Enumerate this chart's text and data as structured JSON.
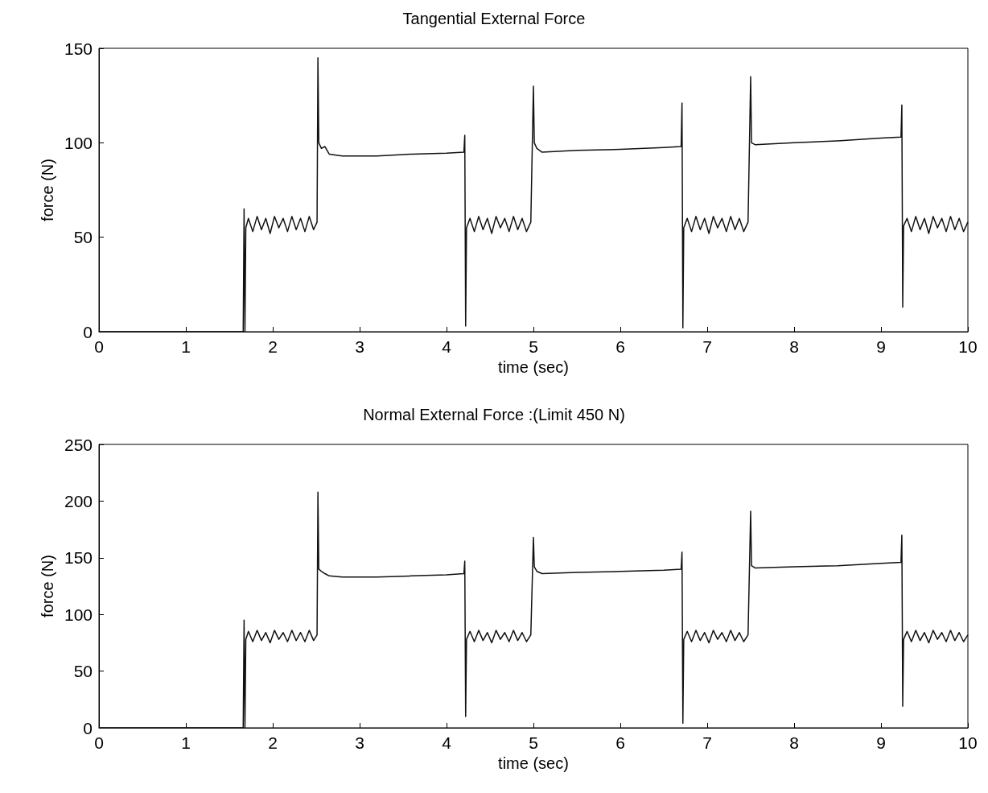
{
  "chart_data": [
    {
      "type": "line",
      "title": "Tangential External Force",
      "xlabel": "time (sec)",
      "ylabel": "force (N)",
      "xlim": [
        0,
        10
      ],
      "xticks": [
        0,
        1,
        2,
        3,
        4,
        5,
        6,
        7,
        8,
        9,
        10
      ],
      "ylim": [
        0,
        150
      ],
      "yticks": [
        0,
        50,
        100,
        150
      ],
      "grid": false,
      "marker": "none",
      "line_style": "solid",
      "series": [
        {
          "color": "#111111",
          "x": [
            0,
            1.66,
            1.67,
            1.68,
            1.69,
            1.72,
            1.77,
            1.82,
            1.87,
            1.92,
            1.97,
            2.02,
            2.07,
            2.12,
            2.17,
            2.22,
            2.27,
            2.32,
            2.37,
            2.42,
            2.47,
            2.51,
            2.52,
            2.53,
            2.56,
            2.6,
            2.65,
            2.8,
            3.2,
            3.6,
            4.0,
            4.2,
            4.21,
            4.22,
            4.23,
            4.27,
            4.32,
            4.37,
            4.42,
            4.47,
            4.52,
            4.57,
            4.62,
            4.67,
            4.72,
            4.77,
            4.82,
            4.87,
            4.92,
            4.97,
            5.0,
            5.01,
            5.04,
            5.1,
            5.5,
            6.0,
            6.5,
            6.7,
            6.71,
            6.72,
            6.73,
            6.77,
            6.82,
            6.87,
            6.92,
            6.97,
            7.02,
            7.07,
            7.12,
            7.17,
            7.22,
            7.27,
            7.32,
            7.37,
            7.42,
            7.47,
            7.5,
            7.51,
            7.55,
            8.0,
            8.5,
            9.0,
            9.23,
            9.24,
            9.25,
            9.26,
            9.3,
            9.35,
            9.4,
            9.45,
            9.5,
            9.55,
            9.6,
            9.65,
            9.7,
            9.75,
            9.8,
            9.85,
            9.9,
            9.95,
            10
          ],
          "values": [
            0,
            0,
            65,
            0,
            55,
            60,
            53,
            61,
            54,
            60,
            52,
            61,
            55,
            60,
            53,
            61,
            54,
            60,
            53,
            61,
            54,
            58,
            145,
            100,
            97,
            98,
            94,
            93,
            93,
            94,
            94.5,
            95,
            104,
            3,
            55,
            60,
            53,
            61,
            54,
            60,
            52,
            61,
            55,
            60,
            53,
            61,
            54,
            60,
            53,
            58,
            130,
            100,
            97,
            95,
            96,
            96.5,
            97.5,
            98,
            121,
            2,
            55,
            60,
            53,
            61,
            54,
            60,
            52,
            61,
            55,
            60,
            53,
            61,
            54,
            60,
            53,
            58,
            135,
            100,
            99,
            100,
            101,
            102.5,
            103,
            120,
            13,
            56,
            60,
            53,
            61,
            54,
            60,
            52,
            61,
            55,
            60,
            53,
            61,
            54,
            60,
            53,
            58
          ]
        }
      ]
    },
    {
      "type": "line",
      "title": "Normal External Force :(Limit 450 N)",
      "xlabel": "time (sec)",
      "ylabel": "force (N)",
      "xlim": [
        0,
        10
      ],
      "xticks": [
        0,
        1,
        2,
        3,
        4,
        5,
        6,
        7,
        8,
        9,
        10
      ],
      "ylim": [
        0,
        250
      ],
      "yticks": [
        0,
        50,
        100,
        150,
        200,
        250
      ],
      "grid": false,
      "marker": "none",
      "line_style": "solid",
      "series": [
        {
          "color": "#111111",
          "x": [
            0,
            1.66,
            1.67,
            1.68,
            1.69,
            1.72,
            1.77,
            1.82,
            1.87,
            1.92,
            1.97,
            2.02,
            2.07,
            2.12,
            2.17,
            2.22,
            2.27,
            2.32,
            2.37,
            2.42,
            2.47,
            2.51,
            2.52,
            2.53,
            2.56,
            2.6,
            2.65,
            2.8,
            3.2,
            3.6,
            4.0,
            4.2,
            4.21,
            4.22,
            4.23,
            4.27,
            4.32,
            4.37,
            4.42,
            4.47,
            4.52,
            4.57,
            4.62,
            4.67,
            4.72,
            4.77,
            4.82,
            4.87,
            4.92,
            4.97,
            5.0,
            5.01,
            5.04,
            5.1,
            5.5,
            6.0,
            6.5,
            6.7,
            6.71,
            6.72,
            6.73,
            6.77,
            6.82,
            6.87,
            6.92,
            6.97,
            7.02,
            7.07,
            7.12,
            7.17,
            7.22,
            7.27,
            7.32,
            7.37,
            7.42,
            7.47,
            7.5,
            7.51,
            7.55,
            8.0,
            8.5,
            9.0,
            9.23,
            9.24,
            9.25,
            9.26,
            9.3,
            9.35,
            9.4,
            9.45,
            9.5,
            9.55,
            9.6,
            9.65,
            9.7,
            9.75,
            9.8,
            9.85,
            9.9,
            9.95,
            10
          ],
          "values": [
            0,
            0,
            95,
            0,
            78,
            85,
            76,
            86,
            77,
            84,
            75,
            86,
            78,
            84,
            76,
            86,
            77,
            84,
            76,
            86,
            77,
            82,
            208,
            140,
            138,
            136,
            134,
            133,
            133,
            134,
            135,
            136,
            147,
            10,
            78,
            85,
            76,
            86,
            77,
            84,
            75,
            86,
            78,
            84,
            76,
            86,
            77,
            84,
            76,
            82,
            168,
            142,
            138,
            136,
            137,
            138,
            139,
            140,
            155,
            4,
            78,
            85,
            76,
            86,
            77,
            84,
            75,
            86,
            78,
            84,
            76,
            86,
            77,
            84,
            76,
            82,
            191,
            143,
            141,
            142,
            143,
            145,
            146,
            170,
            19,
            78,
            85,
            76,
            86,
            77,
            84,
            75,
            86,
            78,
            84,
            76,
            86,
            77,
            84,
            76,
            82
          ]
        }
      ]
    }
  ]
}
